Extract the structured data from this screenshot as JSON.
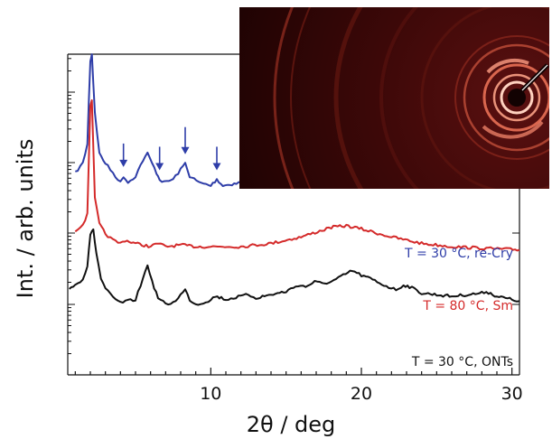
{
  "chart_data": {
    "type": "line",
    "xlabel": "2θ / deg",
    "ylabel": "Int. / arb. units",
    "xlim": [
      0.5,
      30.5
    ],
    "x_ticks": [
      10,
      20,
      30
    ],
    "log_y": true,
    "series": [
      {
        "name": "T = 30 °C, re-Cry",
        "color": "#2e3da8",
        "x": [
          1.0,
          1.5,
          1.8,
          2.0,
          2.1,
          2.3,
          2.6,
          3.0,
          3.5,
          4.0,
          4.2,
          4.5,
          5.0,
          5.5,
          5.8,
          6.1,
          6.4,
          6.6,
          6.9,
          7.5,
          8.0,
          8.3,
          8.6,
          9.2,
          10.0,
          10.4,
          10.8,
          12.0,
          14.0,
          14.7,
          15.4,
          16.5,
          18.0,
          19.0,
          19.4,
          20.0,
          21.5,
          23.0,
          25.0,
          27.0,
          28.3,
          29.0,
          30.5
        ],
        "y": [
          0.63,
          0.66,
          0.72,
          0.98,
          1.0,
          0.82,
          0.69,
          0.66,
          0.63,
          0.6,
          0.62,
          0.6,
          0.62,
          0.67,
          0.69,
          0.66,
          0.63,
          0.61,
          0.6,
          0.61,
          0.64,
          0.66,
          0.62,
          0.6,
          0.59,
          0.61,
          0.59,
          0.6,
          0.61,
          0.62,
          0.61,
          0.63,
          0.66,
          0.68,
          0.675,
          0.66,
          0.64,
          0.63,
          0.61,
          0.615,
          0.62,
          0.61,
          0.6
        ]
      },
      {
        "name": "T = 80 °C, Sm",
        "color": "#d42a2a",
        "x": [
          1.0,
          1.5,
          1.8,
          2.0,
          2.1,
          2.3,
          2.6,
          3.0,
          3.5,
          4.0,
          4.3,
          5.0,
          6.0,
          6.5,
          7.0,
          8.0,
          9.0,
          10.0,
          12.0,
          14.0,
          16.0,
          18.0,
          19.0,
          20.0,
          22.0,
          24.0,
          26.0,
          28.0,
          30.5
        ],
        "y": [
          0.45,
          0.47,
          0.5,
          0.84,
          0.86,
          0.55,
          0.47,
          0.44,
          0.42,
          0.41,
          0.42,
          0.41,
          0.4,
          0.41,
          0.4,
          0.405,
          0.4,
          0.4,
          0.4,
          0.41,
          0.43,
          0.46,
          0.465,
          0.455,
          0.43,
          0.41,
          0.4,
          0.395,
          0.39
        ]
      },
      {
        "name": "T = 30 °C, ONTs",
        "color": "#111111",
        "x": [
          0.6,
          1.0,
          1.5,
          1.8,
          2.0,
          2.2,
          2.4,
          2.7,
          3.0,
          3.5,
          4.0,
          4.5,
          5.0,
          5.5,
          5.8,
          6.1,
          6.5,
          7.0,
          7.5,
          8.0,
          8.3,
          8.6,
          9.0,
          9.5,
          10.0,
          10.3,
          10.7,
          11.0,
          11.5,
          12.0,
          12.5,
          13.0,
          14.0,
          15.0,
          15.8,
          16.3,
          16.9,
          17.4,
          18.0,
          18.8,
          19.4,
          20.0,
          20.6,
          21.5,
          22.3,
          22.8,
          23.2,
          24.0,
          25.0,
          26.0,
          27.0,
          28.0,
          28.3,
          29.0,
          30.0,
          30.5
        ],
        "y": [
          0.27,
          0.28,
          0.3,
          0.34,
          0.44,
          0.45,
          0.38,
          0.3,
          0.27,
          0.24,
          0.225,
          0.23,
          0.235,
          0.3,
          0.345,
          0.29,
          0.24,
          0.22,
          0.225,
          0.25,
          0.265,
          0.235,
          0.22,
          0.225,
          0.235,
          0.245,
          0.24,
          0.235,
          0.24,
          0.245,
          0.25,
          0.24,
          0.25,
          0.26,
          0.28,
          0.275,
          0.29,
          0.285,
          0.29,
          0.31,
          0.325,
          0.31,
          0.3,
          0.28,
          0.265,
          0.28,
          0.275,
          0.255,
          0.25,
          0.245,
          0.25,
          0.255,
          0.26,
          0.245,
          0.235,
          0.23
        ]
      }
    ],
    "arrows_x": [
      4.2,
      6.6,
      8.3,
      10.4
    ]
  }
}
